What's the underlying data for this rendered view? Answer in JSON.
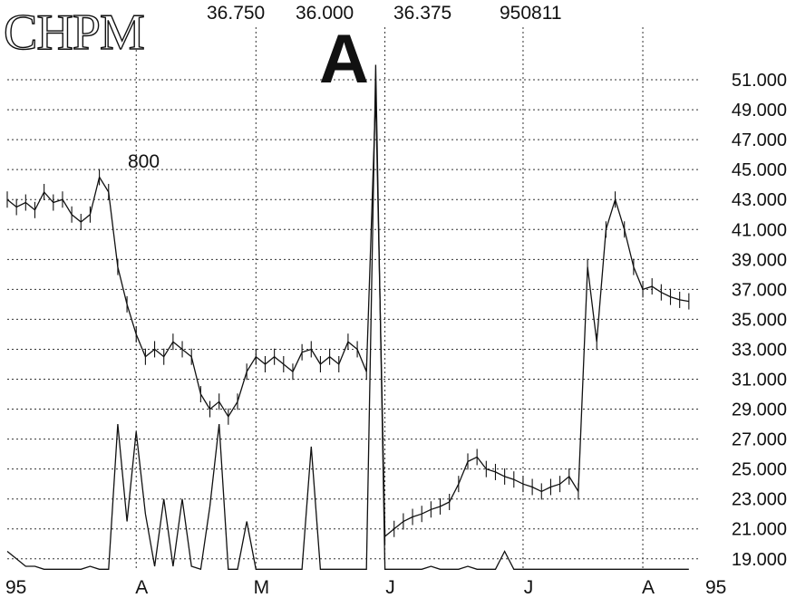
{
  "header": {
    "ticker": "CHPM",
    "values": [
      "36.750",
      "36.000",
      "36.375",
      "950811"
    ],
    "grade": "A",
    "note": "800"
  },
  "chart_data": {
    "type": "line",
    "title": "CHPM",
    "y_axis": {
      "side": "right",
      "range": [
        18.2,
        53
      ],
      "ticks": [
        "51.000",
        "49.000",
        "47.000",
        "45.000",
        "43.000",
        "41.000",
        "39.000",
        "37.000",
        "35.000",
        "33.000",
        "31.000",
        "29.000",
        "27.000",
        "25.000",
        "23.000",
        "21.000",
        "19.000"
      ]
    },
    "x_axis": {
      "ticks": [
        {
          "label": "95",
          "day": 0
        },
        {
          "label": "A",
          "day": 14
        },
        {
          "label": "M",
          "day": 27
        },
        {
          "label": "J",
          "day": 41
        },
        {
          "label": "J",
          "day": 56
        },
        {
          "label": "A",
          "day": 69
        },
        {
          "label": "95",
          "day": 73
        }
      ],
      "day_range": [
        0,
        75
      ]
    },
    "grid": "dotted",
    "series": [
      {
        "role": "price",
        "x": [
          0,
          1,
          2,
          3,
          4,
          5,
          6,
          7,
          8,
          9,
          10,
          11,
          12,
          13,
          14,
          15,
          16,
          17,
          18,
          19,
          20,
          21,
          22,
          23,
          24,
          25,
          26,
          27,
          28,
          29,
          30,
          31,
          32,
          33,
          34,
          35,
          36,
          37,
          38,
          39,
          40,
          41,
          42,
          43,
          44,
          45,
          46,
          47,
          48,
          49,
          50,
          51,
          52,
          53,
          54,
          55,
          56,
          57,
          58,
          59,
          60,
          61,
          62,
          63,
          64,
          65,
          66,
          67,
          68,
          69,
          70,
          71,
          72,
          73,
          74
        ],
        "y": [
          43.0,
          42.5,
          42.8,
          42.3,
          43.5,
          42.8,
          43.0,
          42.0,
          41.5,
          42.0,
          44.5,
          43.5,
          38.5,
          36.0,
          34.0,
          32.5,
          33.0,
          32.5,
          33.5,
          33.0,
          32.5,
          30.0,
          29.0,
          29.5,
          28.5,
          29.5,
          31.5,
          32.5,
          32.0,
          32.5,
          32.0,
          31.5,
          32.8,
          33.0,
          32.0,
          32.5,
          32.0,
          33.5,
          33.0,
          31.5,
          50.0,
          20.5,
          21.0,
          21.5,
          21.8,
          22.0,
          22.3,
          22.5,
          22.8,
          24.0,
          25.5,
          25.8,
          25.0,
          24.8,
          24.5,
          24.3,
          24.0,
          23.8,
          23.5,
          23.8,
          24.0,
          24.5,
          23.5,
          38.5,
          33.5,
          41.0,
          43.0,
          41.0,
          38.5,
          37.0,
          37.2,
          36.8,
          36.5,
          36.3,
          36.2
        ]
      },
      {
        "role": "volume",
        "x": [
          0,
          1,
          2,
          3,
          4,
          5,
          6,
          7,
          8,
          9,
          10,
          11,
          12,
          13,
          14,
          15,
          16,
          17,
          18,
          19,
          20,
          21,
          22,
          23,
          24,
          25,
          26,
          27,
          28,
          29,
          30,
          31,
          32,
          33,
          34,
          35,
          36,
          37,
          38,
          39,
          40,
          41,
          42,
          43,
          44,
          45,
          46,
          47,
          48,
          49,
          50,
          51,
          52,
          53,
          54,
          55,
          56,
          57,
          58,
          59,
          60,
          61,
          62,
          63,
          64,
          65,
          66,
          67,
          68,
          69,
          70,
          71,
          72,
          73,
          74
        ],
        "y": [
          19.5,
          19.0,
          18.5,
          18.5,
          18.3,
          18.3,
          18.3,
          18.3,
          18.3,
          18.5,
          18.3,
          18.3,
          28.0,
          21.5,
          27.5,
          22.0,
          18.5,
          23.0,
          18.5,
          23.0,
          18.5,
          18.3,
          22.5,
          28.0,
          18.3,
          18.3,
          21.5,
          18.3,
          18.3,
          18.3,
          18.3,
          18.3,
          18.3,
          26.5,
          18.3,
          18.3,
          18.3,
          18.3,
          18.3,
          18.3,
          52.0,
          18.3,
          18.3,
          18.3,
          18.3,
          18.3,
          18.5,
          18.3,
          18.3,
          18.3,
          18.5,
          18.3,
          18.3,
          18.3,
          19.5,
          18.3,
          18.3,
          18.3,
          18.3,
          18.3,
          18.3,
          18.3,
          18.3,
          18.3,
          18.3,
          18.3,
          18.3,
          18.3,
          18.3,
          18.3,
          18.3,
          18.3,
          18.3,
          18.3,
          18.3
        ]
      }
    ]
  }
}
